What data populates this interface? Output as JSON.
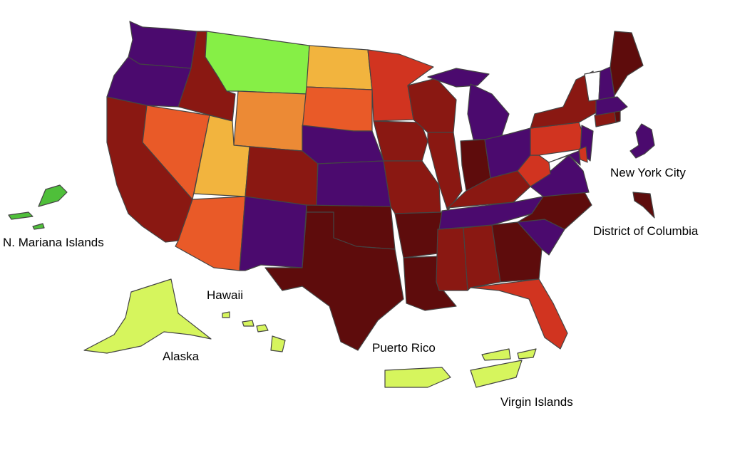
{
  "map": {
    "labels": {
      "nmi": "N. Mariana Islands",
      "hawaii": "Hawaii",
      "alaska": "Alaska",
      "puerto_rico": "Puerto Rico",
      "virgin_islands": "Virgin Islands",
      "nyc": "New York City",
      "dc": "District of Columbia"
    },
    "colors": {
      "dark_purple": "#4b0a6e",
      "bright_green": "#86ef46",
      "yellow_green": "#d6f55d",
      "medium_green": "#4fbf3a",
      "light_orange": "#f2b43e",
      "orange": "#ec8a35",
      "red_orange": "#e95a28",
      "red": "#d13420",
      "dark_red": "#8a1812",
      "darkest_red": "#5e0c0c",
      "white": "#ffffff"
    }
  }
}
